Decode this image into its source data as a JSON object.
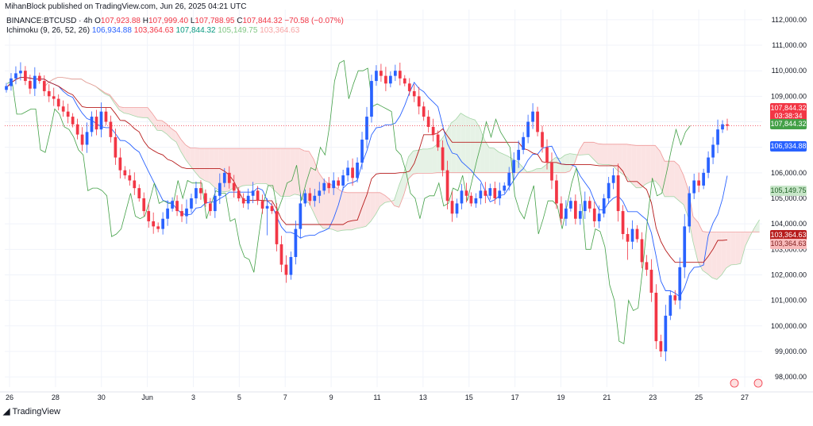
{
  "header": {
    "publisher": "MihanBlock published on TradingView.com, Jun 26, 2025 04:21 UTC",
    "symbol": "BINANCE:BTCUSD · 4h",
    "ohlc": {
      "o_label": "O",
      "o": "107,923.88",
      "h_label": "H",
      "h": "107,999.40",
      "l_label": "L",
      "l": "107,788.95",
      "c_label": "C",
      "c": "107,844.32",
      "change": "−70.58 (−0.07%)"
    },
    "indicator": "Ichimoku (9, 26, 52, 26)",
    "indicator_values": [
      "106,934.88",
      "103,364.63",
      "107,844.32",
      "105,149.75",
      "103,364.63"
    ]
  },
  "axis": {
    "y_ticks": [
      "112,000.00",
      "111,000.00",
      "110,000.00",
      "109,000.00",
      "108,000.00",
      "107,000.00",
      "106,000.00",
      "105,000.00",
      "104,000.00",
      "103,000.00",
      "102,000.00",
      "101,000.00",
      "100,000.00",
      "99,000.00",
      "98,000.00"
    ],
    "x_ticks": [
      "26",
      "28",
      "30",
      "Jun",
      "3",
      "5",
      "7",
      "9",
      "11",
      "13",
      "15",
      "17",
      "19",
      "21",
      "23",
      "25",
      "27"
    ]
  },
  "price_labels": {
    "last": "107,844.32",
    "countdown": "03:38:34",
    "lagging": "107,844.32",
    "conversion": "106,934.88",
    "span_a": "105,149.75",
    "base": "103,364.63",
    "span_b": "103,364.63"
  },
  "colors": {
    "up": "#2962ff",
    "down": "#f23645",
    "conversion": "#2962ff",
    "base": "#b71c1c",
    "lagging": "#43a047",
    "cloud_bull": "#e6f2e6",
    "cloud_bear": "#fbe3e3",
    "span_a": "#a5d6a7",
    "span_b": "#ef9a9a"
  },
  "footer": {
    "logo_text": "TradingView"
  },
  "chart_data": {
    "type": "candlestick",
    "ylim": [
      97600,
      112400
    ],
    "x_ticks": [
      "26",
      "28",
      "30",
      "Jun",
      "3",
      "5",
      "7",
      "9",
      "11",
      "13",
      "15",
      "17",
      "19",
      "21",
      "23",
      "25",
      "27"
    ],
    "series": [
      {
        "name": "Ichimoku (9, 26, 52, 26)",
        "values": [
          106934.88,
          103364.63,
          107844.32,
          105149.75,
          103364.63
        ]
      }
    ],
    "candles_close": [
      109400,
      109700,
      109900,
      110000,
      109600,
      109300,
      109800,
      109600,
      109200,
      109000,
      108900,
      108600,
      108400,
      108200,
      107900,
      107500,
      107100,
      107600,
      108200,
      107700,
      108400,
      108000,
      107400,
      106600,
      106100,
      105900,
      105700,
      105400,
      105000,
      104500,
      104100,
      103900,
      103800,
      104200,
      104600,
      104900,
      104500,
      104300,
      104600,
      105000,
      105400,
      105200,
      104800,
      104500,
      105100,
      105600,
      106000,
      105600,
      105300,
      105000,
      104800,
      105100,
      105300,
      104900,
      104600,
      104700,
      104500,
      103200,
      102400,
      102000,
      102700,
      103800,
      104800,
      105200,
      104900,
      105100,
      105300,
      105600,
      105400,
      105700,
      105500,
      105900,
      106200,
      105800,
      106400,
      107300,
      108200,
      109600,
      110000,
      109800,
      109500,
      109800,
      110000,
      109700,
      109500,
      109200,
      109000,
      108600,
      108200,
      107800,
      107500,
      107000,
      106100,
      104900,
      104400,
      104800,
      105300,
      105100,
      104800,
      105000,
      105300,
      105100,
      105400,
      105000,
      105300,
      105500,
      106000,
      106500,
      106900,
      107400,
      108000,
      108400,
      107600,
      107000,
      106400,
      105700,
      104800,
      104200,
      104600,
      104900,
      104200,
      104500,
      104900,
      104600,
      104100,
      104400,
      105000,
      105600,
      105900,
      104500,
      103600,
      103300,
      103800,
      103400,
      102500,
      102200,
      101300,
      99400,
      99000,
      100400,
      101200,
      101000,
      102300,
      103900,
      105200,
      105700,
      105500,
      106000,
      106600,
      107100,
      107700,
      107900,
      107844
    ]
  }
}
